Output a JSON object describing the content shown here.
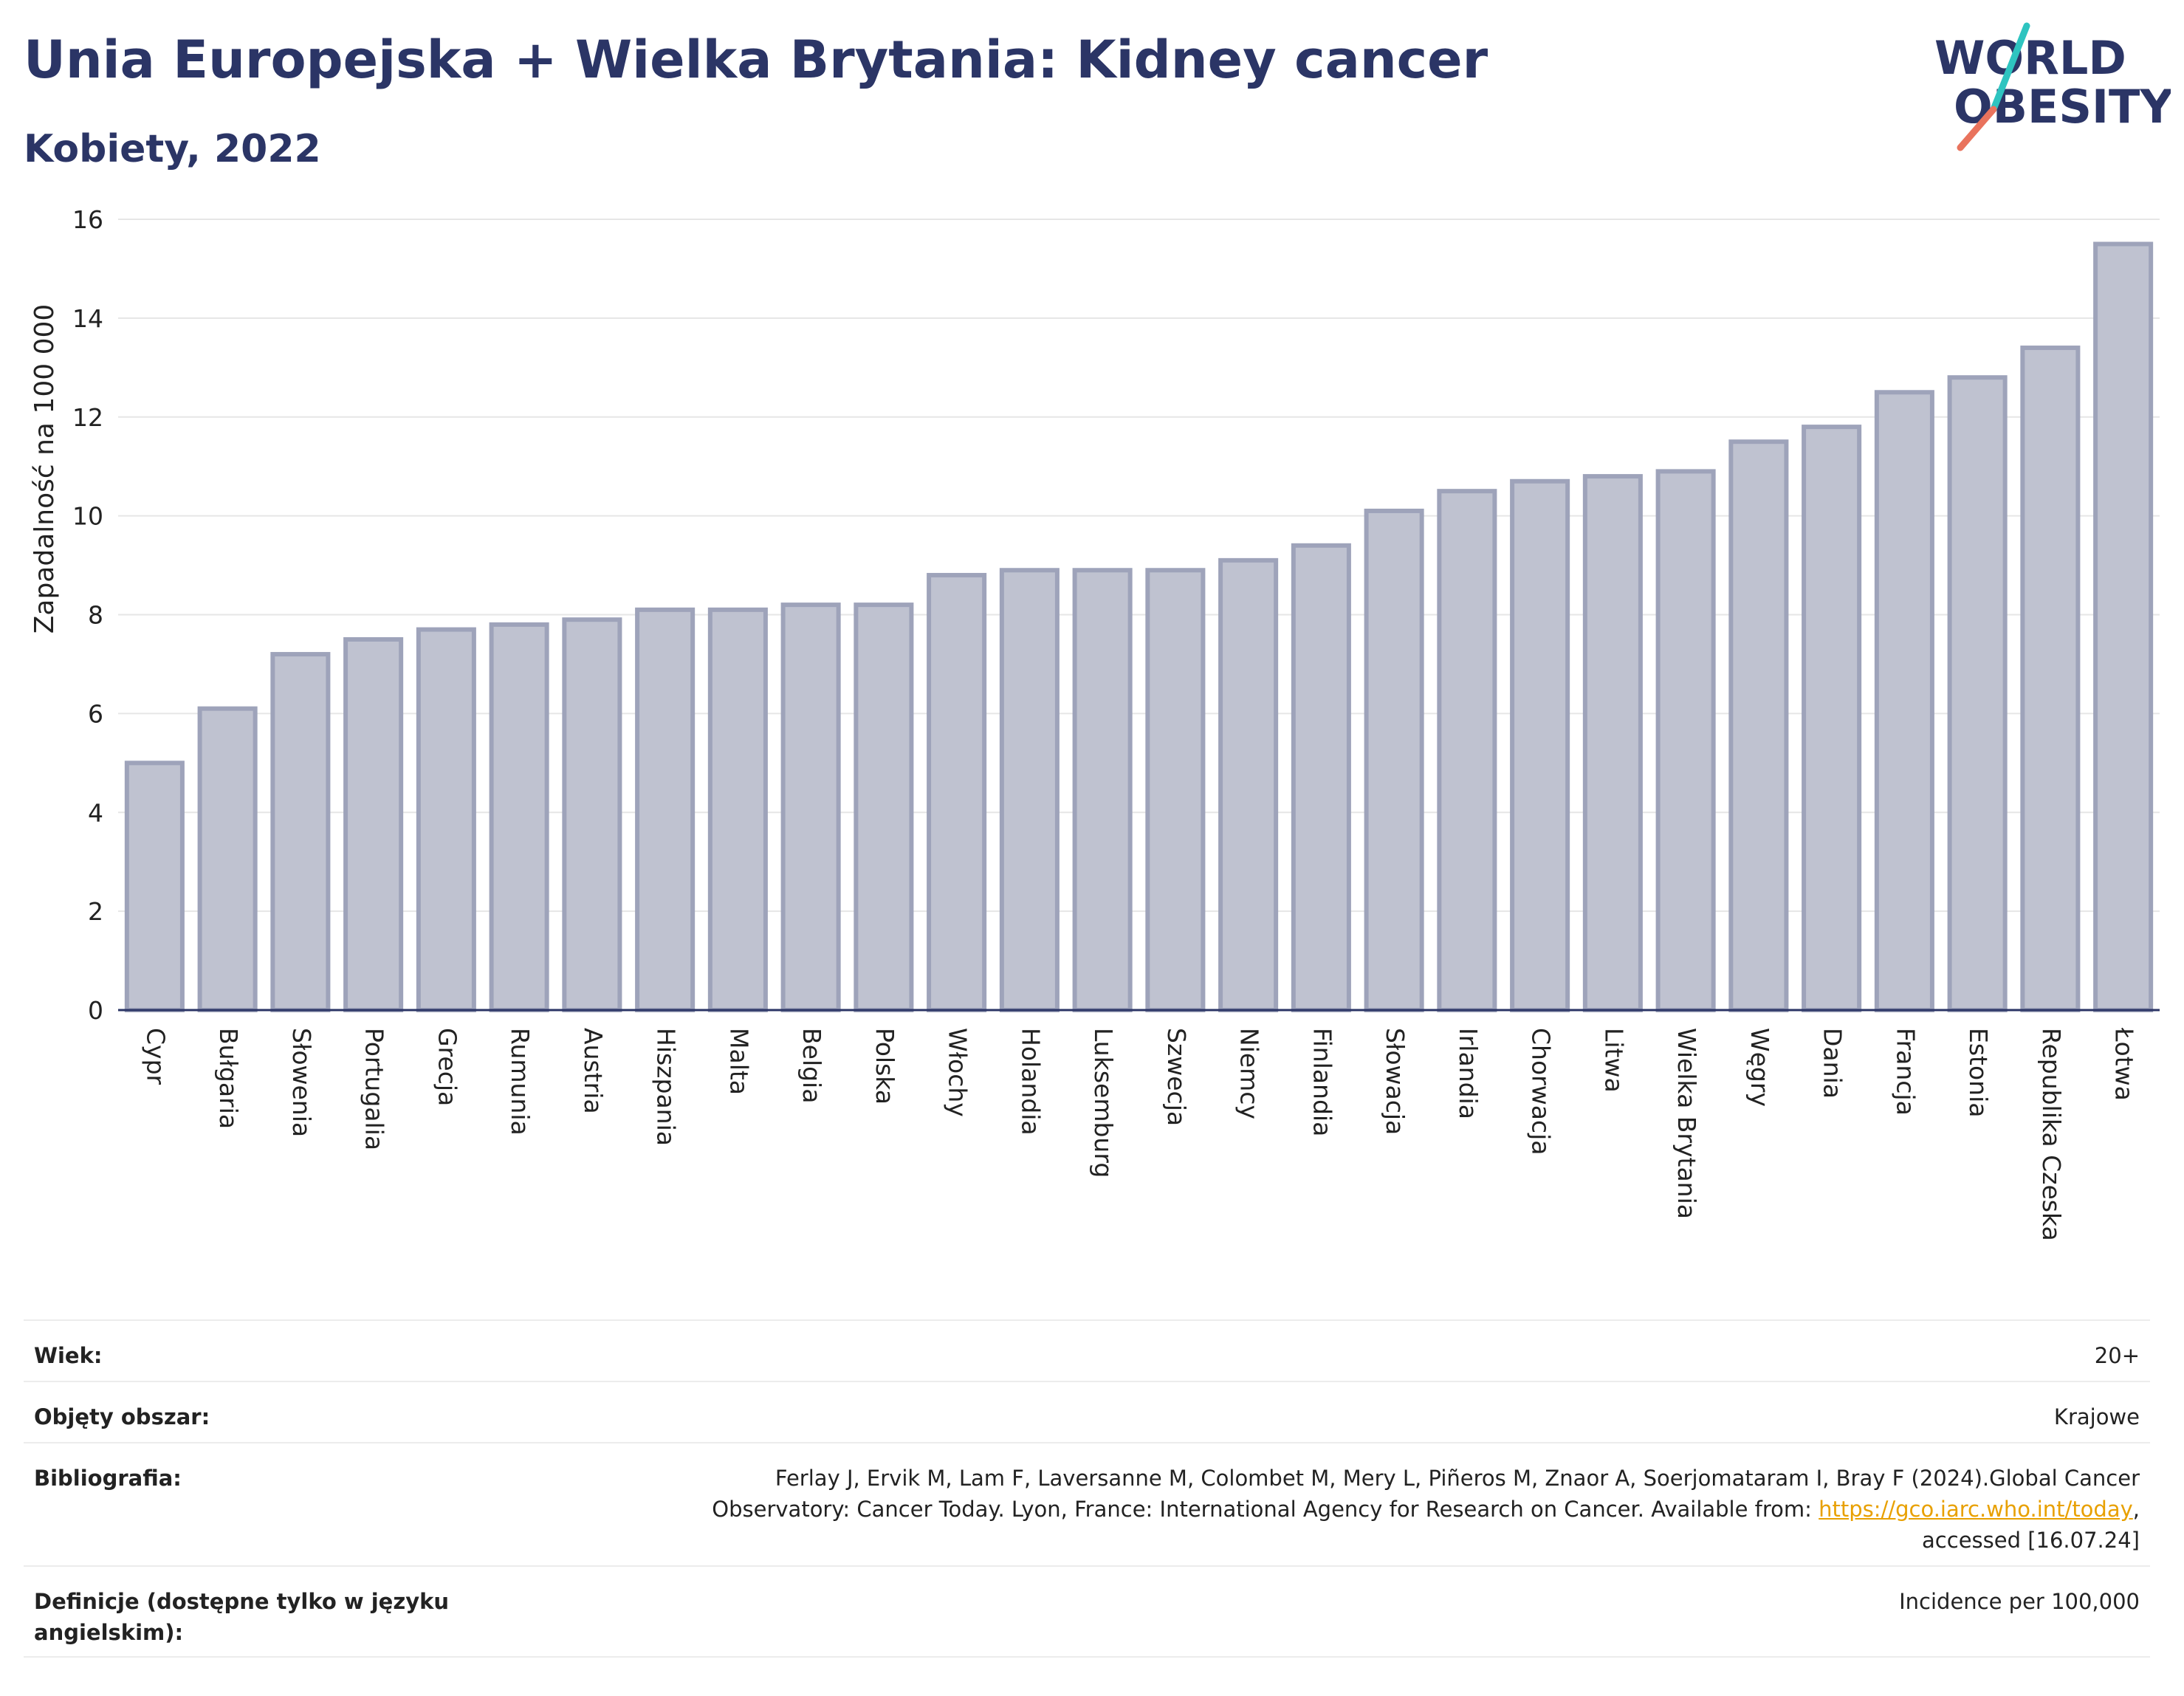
{
  "header": {
    "title": "Unia Europejska + Wielka Brytania: Kidney cancer",
    "subtitle": "Kobiety, 2022"
  },
  "logo": {
    "line1": "WORLD",
    "line2": "OBESITY"
  },
  "colors": {
    "bar_fill": "#bfc2d0",
    "bar_stroke": "#9ea3ba",
    "title": "#2b3566",
    "link": "#e8a000"
  },
  "chart_data": {
    "type": "bar",
    "ylabel": "Zapadalność na 100 000",
    "xlabel": "",
    "ylim": [
      0,
      16
    ],
    "yticks": [
      0,
      2,
      4,
      6,
      8,
      10,
      12,
      14,
      16
    ],
    "grid": true,
    "categories": [
      "Cypr",
      "Bułgaria",
      "Słowenia",
      "Portugalia",
      "Grecja",
      "Rumunia",
      "Austria",
      "Hiszpania",
      "Malta",
      "Belgia",
      "Polska",
      "Włochy",
      "Holandia",
      "Luksemburg",
      "Szwecja",
      "Niemcy",
      "Finlandia",
      "Słowacja",
      "Irlandia",
      "Chorwacja",
      "Litwa",
      "Wielka Brytania",
      "Węgry",
      "Dania",
      "Francja",
      "Estonia",
      "Republika Czeska",
      "Łotwa"
    ],
    "values": [
      5.0,
      6.1,
      7.2,
      7.5,
      7.7,
      7.8,
      7.9,
      8.1,
      8.1,
      8.2,
      8.2,
      8.8,
      8.9,
      8.9,
      8.9,
      9.1,
      9.4,
      10.1,
      10.5,
      10.7,
      10.8,
      10.9,
      11.5,
      11.8,
      12.5,
      12.8,
      13.4,
      15.5
    ]
  },
  "info": {
    "age_label": "Wiek:",
    "age_value": "20+",
    "area_label": "Objęty obszar:",
    "area_value": "Krajowe",
    "biblio_label": "Bibliografia:",
    "biblio_line1": "Ferlay J, Ervik M, Lam F, Laversanne M, Colombet M, Mery L, Piñeros M, Znaor A, Soerjomataram I, Bray F (2024).Global Cancer",
    "biblio_line2": "Observatory: Cancer Today. Lyon, France: International Agency for Research on Cancer. Available from:",
    "biblio_link": "https://gco.iarc.who.int/today",
    "biblio_line2_end": ",",
    "biblio_line3": "accessed [16.07.24]",
    "def_label": "Definicje (dostępne tylko w języku angielskim):",
    "def_value": "Incidence per 100,000"
  }
}
